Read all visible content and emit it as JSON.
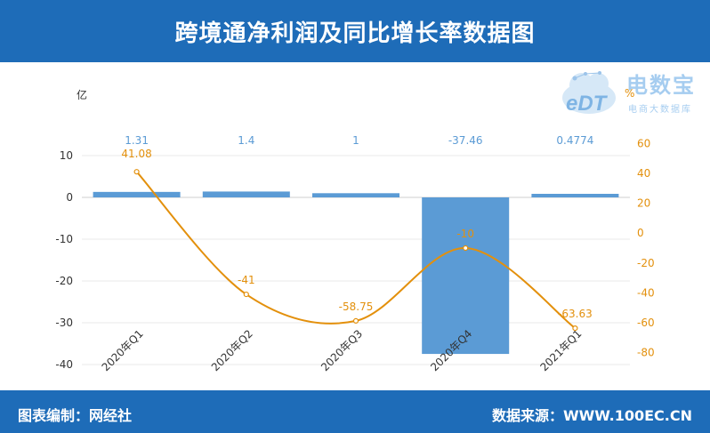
{
  "header": {
    "title": "跨境通净利润及同比增长率数据图"
  },
  "footer": {
    "left": "图表编制：网经社",
    "right": "数据来源：WWW.100EC.CN"
  },
  "logo": {
    "mark": "eDT",
    "name": "电数宝",
    "tagline": "电商大数据库",
    "icon": "cloud-logo-icon"
  },
  "colors": {
    "header_bg": "#1e6cb8",
    "bar": "#5b9bd5",
    "line": "#e3900c",
    "grid": "#e8e8e8"
  },
  "chart_data": {
    "type": "bar",
    "categories": [
      "2020年Q1",
      "2020年Q2",
      "2020年Q3",
      "2020年Q4",
      "2021年Q1"
    ],
    "series": [
      {
        "type": "bar",
        "axis": "left",
        "values": [
          1.31,
          1.4,
          1,
          -37.46,
          0.4774
        ],
        "labels": [
          "1.31",
          "1.4",
          "1",
          "-37.46",
          "0.4774"
        ]
      },
      {
        "type": "line",
        "axis": "right",
        "values": [
          41.08,
          -41,
          -58.75,
          -10,
          -63.63
        ],
        "labels": [
          "41.08",
          "-41",
          "-58.75",
          "-10",
          "-63.63"
        ]
      }
    ],
    "y_left": {
      "unit": "亿",
      "range": [
        -40,
        10
      ],
      "ticks": [
        10,
        0,
        -10,
        -20,
        -30,
        -40
      ]
    },
    "y_right": {
      "unit": "%",
      "range": [
        -80,
        60
      ],
      "ticks": [
        60,
        40,
        20,
        0,
        -20,
        -40,
        -60,
        -80
      ]
    },
    "grid": true
  }
}
